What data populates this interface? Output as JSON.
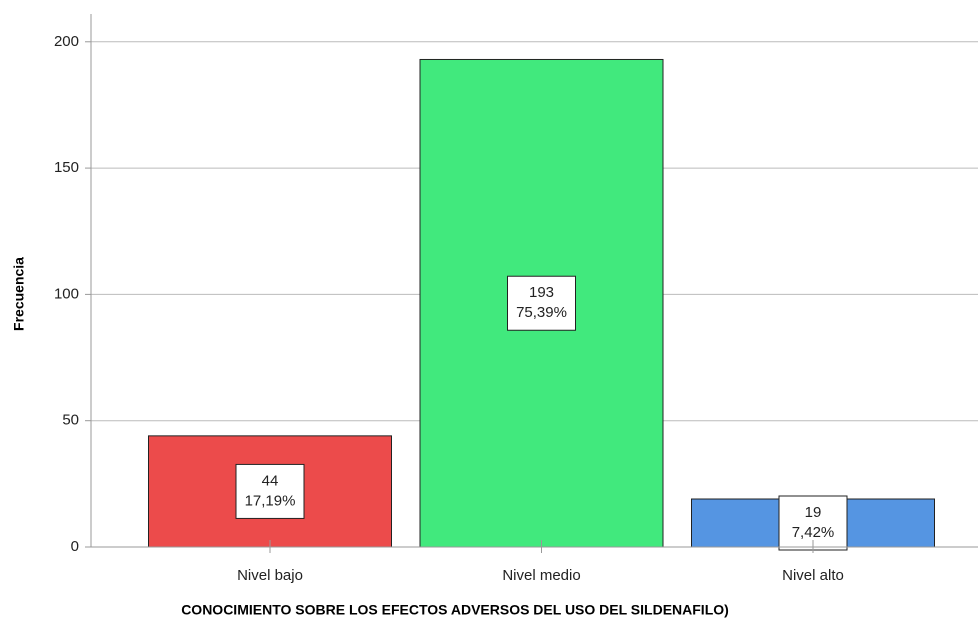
{
  "chart_data": {
    "type": "bar",
    "xlabel": "CONOCIMIENTO SOBRE LOS EFECTOS ADVERSOS DEL USO DEL SILDENAFILO)",
    "ylabel": "Frecuencia",
    "categories": [
      "Nivel bajo",
      "Nivel medio",
      "Nivel alto"
    ],
    "values": [
      44,
      193,
      19
    ],
    "percentages": [
      17.19,
      75.39,
      7.42
    ],
    "percentage_labels": [
      "17,19%",
      "75,39%",
      "7,42%"
    ],
    "colors": [
      "#ec4b4b",
      "#41e97d",
      "#5595e2"
    ],
    "ylim": [
      0,
      211
    ],
    "yticks": [
      0,
      50,
      100,
      150,
      200
    ],
    "grid": true
  }
}
